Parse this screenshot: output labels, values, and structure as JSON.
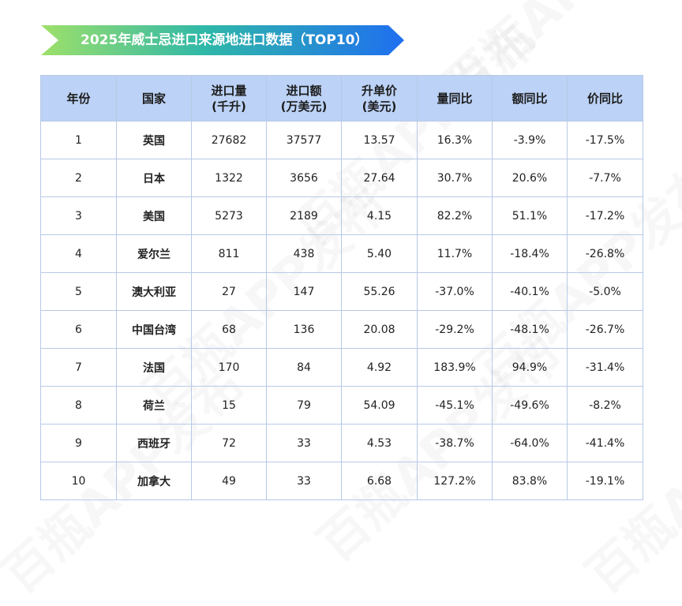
{
  "title": "2025年威士忌进口来源地进口数据（TOP10）",
  "watermark": "百瓶APP发布",
  "colors": {
    "positive": "#cc1f3c",
    "negative": "#2f8f1f",
    "header_bg": "#bcd2f6",
    "banner_start": "#9ee06a",
    "banner_end": "#1f6ff0"
  },
  "table": {
    "headers": [
      [
        "年份"
      ],
      [
        "国家"
      ],
      [
        "进口量",
        "(千升)"
      ],
      [
        "进口额",
        "(万美元)"
      ],
      [
        "升单价",
        "(美元)"
      ],
      [
        "量同比"
      ],
      [
        "额同比"
      ],
      [
        "价同比"
      ]
    ],
    "rows": [
      {
        "rank": "1",
        "country": "英国",
        "volume": "27682",
        "value": "37577",
        "price": "13.57",
        "vol_yoy": "16.3%",
        "val_yoy": "-3.9%",
        "price_yoy": "-17.5%"
      },
      {
        "rank": "2",
        "country": "日本",
        "volume": "1322",
        "value": "3656",
        "price": "27.64",
        "vol_yoy": "30.7%",
        "val_yoy": "20.6%",
        "price_yoy": "-7.7%"
      },
      {
        "rank": "3",
        "country": "美国",
        "volume": "5273",
        "value": "2189",
        "price": "4.15",
        "vol_yoy": "82.2%",
        "val_yoy": "51.1%",
        "price_yoy": "-17.2%"
      },
      {
        "rank": "4",
        "country": "爱尔兰",
        "volume": "811",
        "value": "438",
        "price": "5.40",
        "vol_yoy": "11.7%",
        "val_yoy": "-18.4%",
        "price_yoy": "-26.8%"
      },
      {
        "rank": "5",
        "country": "澳大利亚",
        "volume": "27",
        "value": "147",
        "price": "55.26",
        "vol_yoy": "-37.0%",
        "val_yoy": "-40.1%",
        "price_yoy": "-5.0%"
      },
      {
        "rank": "6",
        "country": "中国台湾",
        "volume": "68",
        "value": "136",
        "price": "20.08",
        "vol_yoy": "-29.2%",
        "val_yoy": "-48.1%",
        "price_yoy": "-26.7%"
      },
      {
        "rank": "7",
        "country": "法国",
        "volume": "170",
        "value": "84",
        "price": "4.92",
        "vol_yoy": "183.9%",
        "val_yoy": "94.9%",
        "price_yoy": "-31.4%"
      },
      {
        "rank": "8",
        "country": "荷兰",
        "volume": "15",
        "value": "79",
        "price": "54.09",
        "vol_yoy": "-45.1%",
        "val_yoy": "-49.6%",
        "price_yoy": "-8.2%"
      },
      {
        "rank": "9",
        "country": "西班牙",
        "volume": "72",
        "value": "33",
        "price": "4.53",
        "vol_yoy": "-38.7%",
        "val_yoy": "-64.0%",
        "price_yoy": "-41.4%"
      },
      {
        "rank": "10",
        "country": "加拿大",
        "volume": "49",
        "value": "33",
        "price": "6.68",
        "vol_yoy": "127.2%",
        "val_yoy": "83.8%",
        "price_yoy": "-19.1%"
      }
    ]
  }
}
